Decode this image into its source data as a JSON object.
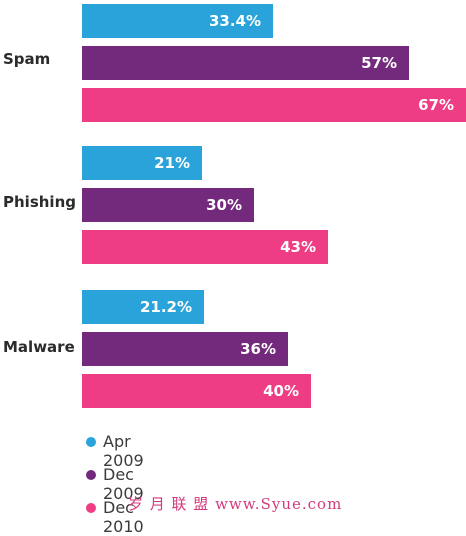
{
  "chart_data": {
    "type": "bar",
    "orientation": "horizontal",
    "categories": [
      "Spam",
      "Phishing",
      "Malware"
    ],
    "series": [
      {
        "name": "Apr 2009",
        "values": [
          33.4,
          21,
          21.2
        ],
        "labels": [
          "33.4%",
          "21%",
          "21.2%"
        ],
        "color": "#29a3d9"
      },
      {
        "name": "Dec 2009",
        "values": [
          57,
          30,
          36
        ],
        "labels": [
          "57%",
          "30%",
          "36%"
        ],
        "color": "#732a7c"
      },
      {
        "name": "Dec 2010",
        "values": [
          67,
          43,
          40
        ],
        "labels": [
          "67%",
          "43%",
          "40%"
        ],
        "color": "#ee3d84"
      }
    ],
    "xlim": [
      0,
      67
    ],
    "legend": "bottom-left"
  },
  "watermark": "岁 月 联 盟  www.Syue.com"
}
